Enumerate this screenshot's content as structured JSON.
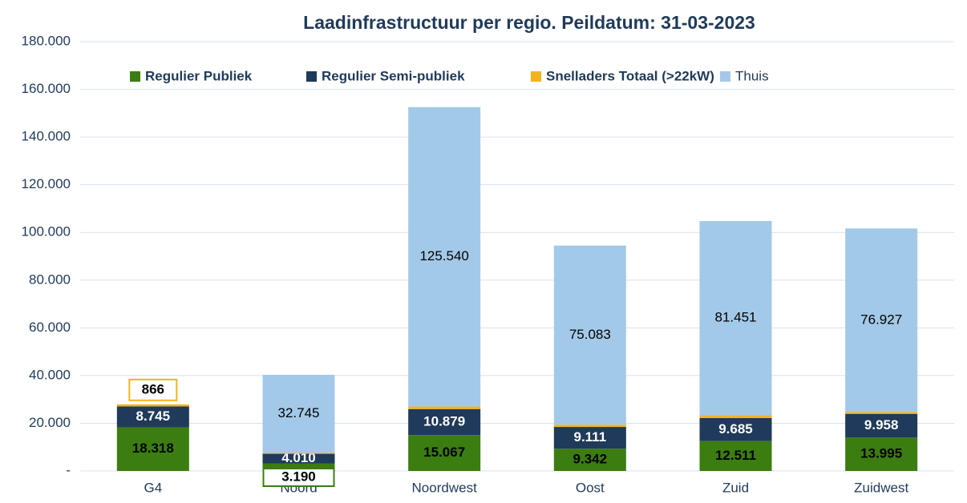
{
  "chart_data": {
    "type": "bar",
    "stacked": true,
    "title": "Laadinfrastructuur per regio. Peildatum: 31-03-2023",
    "categories": [
      "G4",
      "Noord",
      "Noordwest",
      "Oost",
      "Zuid",
      "Zuidwest"
    ],
    "series": [
      {
        "name": "Regulier Publiek",
        "color": "#3b7d10",
        "values": [
          18318,
          3190,
          15067,
          9342,
          12511,
          13995
        ],
        "value_labels": [
          "18.318",
          "3.190",
          "15.067",
          "9.342",
          "12.511",
          "13.995"
        ]
      },
      {
        "name": "Regulier Semi-publiek",
        "color": "#1f3a5a",
        "values": [
          8745,
          4010,
          10879,
          9111,
          9685,
          9958
        ],
        "value_labels": [
          "8.745",
          "4.010",
          "10.879",
          "9.111",
          "9.685",
          "9.958"
        ]
      },
      {
        "name": "Snelladers Totaal (>22kW)",
        "color": "#f5b21a",
        "values": [
          866,
          379,
          1070,
          958,
          1136,
          792
        ],
        "value_labels": [
          "866",
          "379",
          "1.070",
          "958",
          "1.136",
          "792"
        ]
      },
      {
        "name": "Thuis",
        "color": "#a3c9e8",
        "values": [
          null,
          32745,
          125540,
          75083,
          81451,
          76927
        ],
        "value_labels": [
          null,
          "32.745",
          "125.540",
          "75.083",
          "81.451",
          "76.927"
        ]
      }
    ],
    "ylim": [
      0,
      180000
    ],
    "yticks": [
      {
        "value": 0,
        "label": "-"
      },
      {
        "value": 20000,
        "label": "20.000"
      },
      {
        "value": 40000,
        "label": "40.000"
      },
      {
        "value": 60000,
        "label": "60.000"
      },
      {
        "value": 80000,
        "label": "80.000"
      },
      {
        "value": 100000,
        "label": "100.000"
      },
      {
        "value": 120000,
        "label": "120.000"
      },
      {
        "value": 140000,
        "label": "140.000"
      },
      {
        "value": 160000,
        "label": "160.000"
      },
      {
        "value": 180000,
        "label": "180.000"
      }
    ],
    "grid": true,
    "legend": "top"
  }
}
